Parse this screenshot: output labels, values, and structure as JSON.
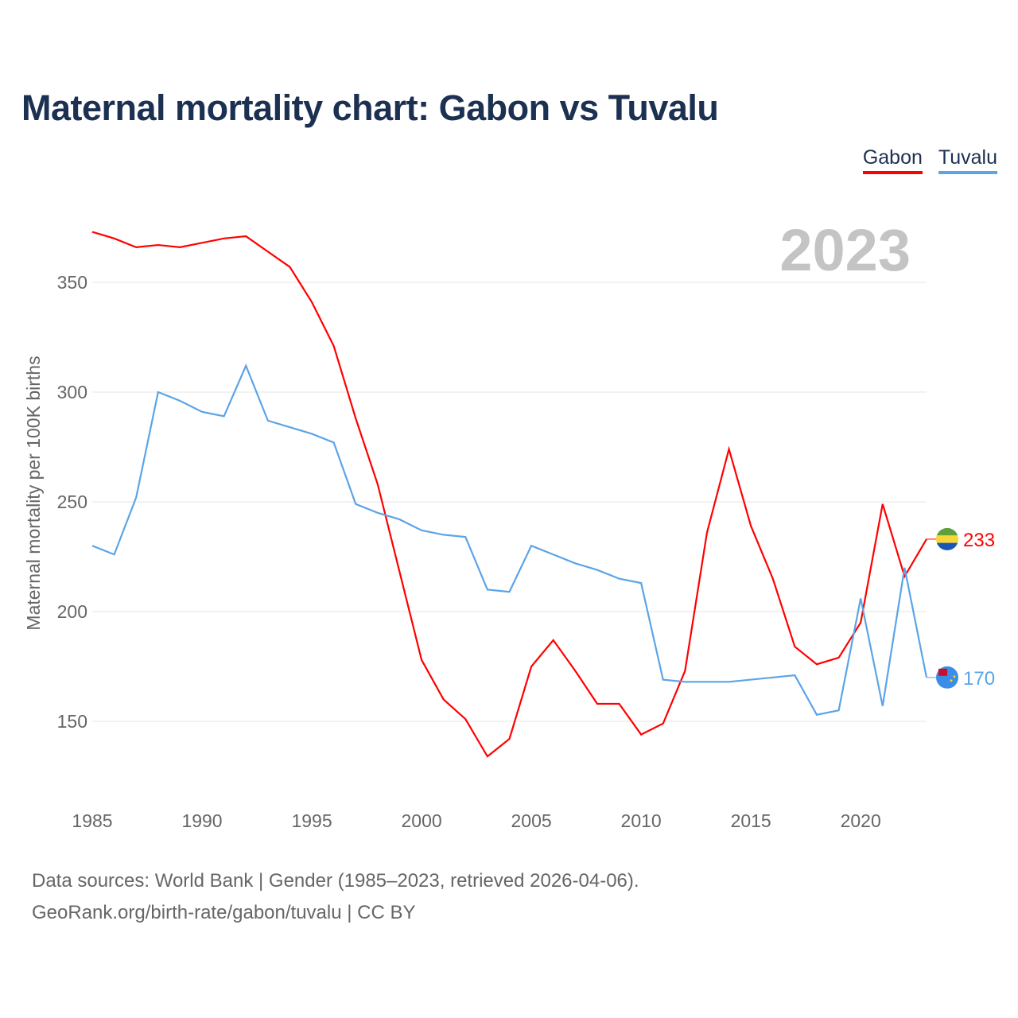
{
  "title": "Maternal mortality chart: Gabon vs Tuvalu",
  "footer": {
    "line1": "Data sources: World Bank | Gender (1985–2023, retrieved 2026-04-06).",
    "line2": "GeoRank.org/birth-rate/gabon/tuvalu | CC BY"
  },
  "chart_data": {
    "type": "line",
    "title": "Maternal mortality chart: Gabon vs Tuvalu",
    "ylabel": "Maternal mortality per 100K births",
    "xlabel": "",
    "year_label": "2023",
    "x": [
      1985,
      1986,
      1987,
      1988,
      1989,
      1990,
      1991,
      1992,
      1993,
      1994,
      1995,
      1996,
      1997,
      1998,
      1999,
      2000,
      2001,
      2002,
      2003,
      2004,
      2005,
      2006,
      2007,
      2008,
      2009,
      2010,
      2011,
      2012,
      2013,
      2014,
      2015,
      2016,
      2017,
      2018,
      2019,
      2020,
      2021,
      2022,
      2023
    ],
    "xlim": [
      1985,
      2023
    ],
    "ylim": [
      120,
      380
    ],
    "xticks": [
      1985,
      1990,
      1995,
      2000,
      2005,
      2010,
      2015,
      2020
    ],
    "yticks": [
      150,
      200,
      250,
      300,
      350
    ],
    "grid": true,
    "legend_position": "top-right",
    "series": [
      {
        "name": "Gabon",
        "color": "#ff0000",
        "end_label": "233",
        "values": [
          373,
          370,
          366,
          367,
          366,
          368,
          370,
          371,
          364,
          357,
          341,
          321,
          288,
          258,
          218,
          178,
          160,
          151,
          134,
          142,
          175,
          187,
          173,
          158,
          158,
          144,
          149,
          173,
          236,
          274,
          239,
          215,
          184,
          176,
          179,
          195,
          249,
          216,
          233
        ]
      },
      {
        "name": "Tuvalu",
        "color": "#5ba4e8",
        "end_label": "170",
        "values": [
          230,
          226,
          252,
          300,
          296,
          291,
          289,
          312,
          287,
          284,
          281,
          277,
          249,
          245,
          242,
          237,
          235,
          234,
          210,
          209,
          230,
          226,
          222,
          219,
          215,
          213,
          169,
          168,
          168,
          168,
          169,
          170,
          171,
          153,
          155,
          206,
          157,
          220,
          170
        ]
      }
    ]
  }
}
